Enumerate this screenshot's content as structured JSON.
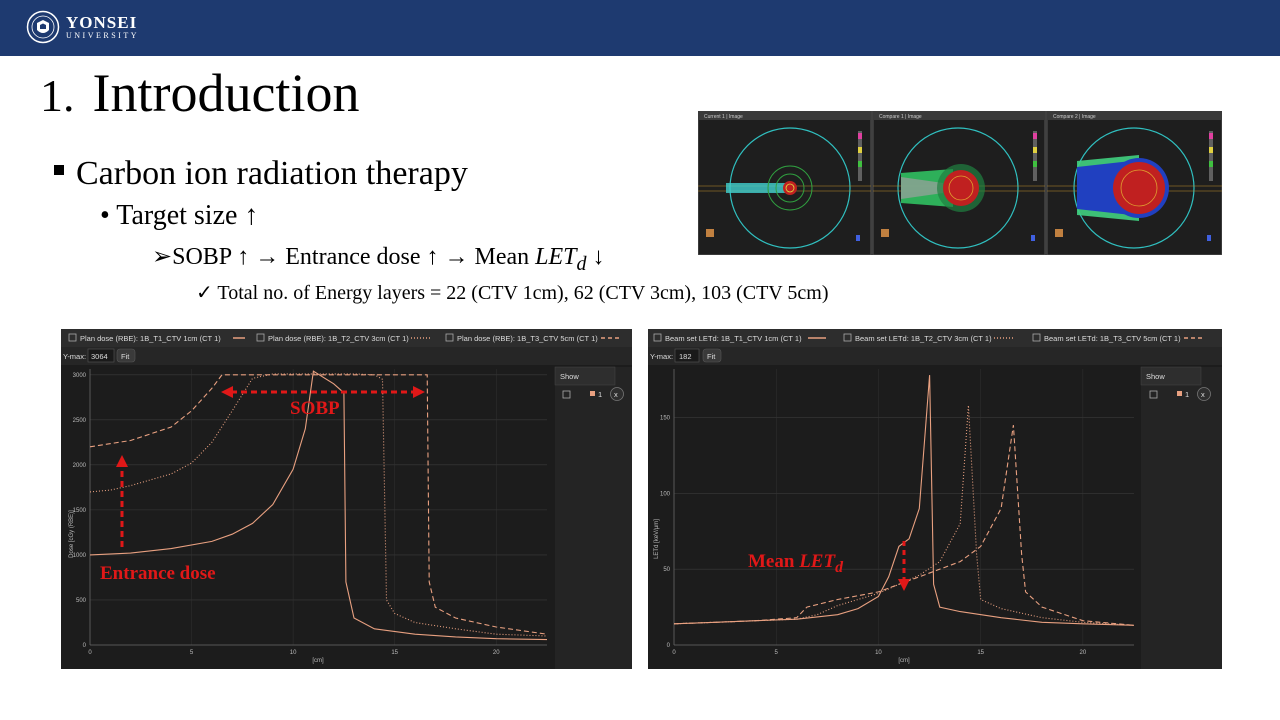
{
  "header": {
    "logo_name": "YONSEI",
    "logo_sub": "UNIVERSITY"
  },
  "slide": {
    "title_num": "1.",
    "title": "Introduction",
    "bullet1": "Carbon ion radiation therapy",
    "bullet2_prefix": "• ",
    "bullet2": "Target size ↑",
    "bullet3_prefix": "➢",
    "bullet3": "SOBP ↑ → Entrance dose ↑ → Mean ",
    "bullet3_var": "LET",
    "bullet3_sub": "d",
    "bullet3_suffix": " ↓",
    "bullet4_prefix": "✓ ",
    "bullet4": "Total no. of Energy layers = 22 (CTV 1cm), 62 (CTV 3cm), 103 (CTV 5cm)"
  },
  "colors": {
    "header_blue": "#1e3a70",
    "curve": "#e8a080",
    "annotation_red": "#e01818",
    "panel_bg": "#1c1c1c"
  },
  "dose_panel": {
    "legend": [
      "Plan dose (RBE): 1B_T1_CTV 1cm (CT 1)",
      "Plan dose (RBE): 1B_T2_CTV 3cm (CT 1)",
      "Plan dose (RBE): 1B_T3_CTV 5cm (CT 1)"
    ],
    "ymax_label": "Y-max:",
    "ymax_value": "3064",
    "fit_label": "Fit",
    "show_label": "Show",
    "show_item": "1",
    "remove_label": "x",
    "ylabel": "Dose [cGy (RBE)]",
    "xlabel": "[cm]",
    "yticks": [
      "3000",
      "2500",
      "2000",
      "1500",
      "1000",
      "500",
      "0"
    ],
    "xticks": [
      "0",
      "5",
      "10",
      "15",
      "20"
    ],
    "annotation_sobp": "SOBP",
    "annotation_entrance": "Entrance dose"
  },
  "let_panel": {
    "legend": [
      "Beam set LETd: 1B_T1_CTV 1cm (CT 1)",
      "Beam set LETd: 1B_T2_CTV 3cm (CT 1)",
      "Beam set LETd: 1B_T3_CTV 5cm (CT 1)"
    ],
    "ymax_label": "Y-max:",
    "ymax_value": "182",
    "fit_label": "Fit",
    "show_label": "Show",
    "show_item": "1",
    "remove_label": "x",
    "ylabel": "LETd [keV/μm]",
    "xlabel": "[cm]",
    "yticks": [
      "150",
      "100",
      "50",
      "0"
    ],
    "xticks": [
      "0",
      "5",
      "10",
      "15",
      "20"
    ],
    "annotation_mean": "Mean ",
    "annotation_var": "LET",
    "annotation_sub": "d"
  },
  "ct_panel": {
    "tabs": [
      "Current 1 | Image",
      "Compare 1 | Image",
      "Compare 2 | Image"
    ]
  },
  "chart_data": [
    {
      "type": "line",
      "xlabel": "[cm]",
      "ylabel": "Dose [cGy (RBE)]",
      "xlim": [
        0,
        22.5
      ],
      "ylim": [
        0,
        3064
      ],
      "grid": true,
      "legend": "top",
      "series": [
        {
          "name": "Plan dose (RBE): 1B_T1_CTV 1cm (CT 1)",
          "style": "solid",
          "x": [
            0,
            2,
            4,
            6,
            7,
            8,
            9,
            10,
            10.6,
            11,
            12,
            12.5,
            12.6,
            13,
            14,
            16,
            18,
            20,
            22.5
          ],
          "y": [
            1000,
            1020,
            1070,
            1150,
            1230,
            1350,
            1560,
            1950,
            2400,
            3040,
            2900,
            2800,
            700,
            300,
            180,
            120,
            90,
            70,
            60
          ]
        },
        {
          "name": "Plan dose (RBE): 1B_T2_CTV 3cm (CT 1)",
          "style": "dotted",
          "x": [
            0,
            1,
            2,
            4,
            5,
            6,
            7,
            8,
            9,
            10,
            11,
            12,
            13,
            14,
            14.4,
            14.6,
            15,
            16,
            18,
            20,
            22.5
          ],
          "y": [
            1700,
            1720,
            1770,
            1900,
            2020,
            2250,
            2600,
            2960,
            3010,
            3010,
            3010,
            3010,
            3010,
            3000,
            2950,
            500,
            350,
            250,
            180,
            120,
            100
          ]
        },
        {
          "name": "Plan dose (RBE): 1B_T3_CTV 5cm (CT 1)",
          "style": "dashed",
          "x": [
            0,
            2,
            4,
            5,
            6,
            6.5,
            7,
            9,
            11,
            13,
            15,
            16.6,
            16.7,
            17,
            18,
            20,
            22.5
          ],
          "y": [
            2200,
            2270,
            2420,
            2600,
            2850,
            3000,
            3000,
            3000,
            3000,
            3000,
            3000,
            3000,
            700,
            420,
            300,
            200,
            120
          ]
        }
      ]
    },
    {
      "type": "line",
      "xlabel": "[cm]",
      "ylabel": "LETd [keV/μm]",
      "xlim": [
        0,
        22.5
      ],
      "ylim": [
        0,
        182
      ],
      "grid": true,
      "legend": "top",
      "series": [
        {
          "name": "Beam set LETd: 1B_T1_CTV 1cm (CT 1)",
          "style": "solid",
          "x": [
            0,
            2,
            4,
            6,
            8,
            9,
            10,
            10.5,
            11,
            11.5,
            12,
            12.5,
            12.7,
            13,
            14,
            16,
            18,
            20,
            22.5
          ],
          "y": [
            14,
            15,
            16,
            17,
            20,
            24,
            32,
            45,
            65,
            70,
            90,
            178,
            40,
            25,
            22,
            18,
            15,
            14,
            13
          ]
        },
        {
          "name": "Beam set LETd: 1B_T2_CTV 3cm (CT 1)",
          "style": "dotted",
          "x": [
            0,
            2,
            4,
            6,
            7,
            8,
            9,
            10,
            11,
            12,
            13,
            14,
            14.4,
            14.8,
            15,
            16,
            18,
            20,
            22.5
          ],
          "y": [
            14,
            15,
            16,
            17,
            20,
            26,
            30,
            34,
            40,
            46,
            55,
            80,
            158,
            60,
            30,
            24,
            18,
            15,
            13
          ]
        },
        {
          "name": "Beam set LETd: 1B_T3_CTV 5cm (CT 1)",
          "style": "dashed",
          "x": [
            0,
            2,
            4,
            6,
            6.5,
            8,
            10,
            12,
            14,
            15,
            16,
            16.6,
            17,
            17.2,
            18,
            20,
            22.5
          ],
          "y": [
            14,
            15,
            16,
            18,
            25,
            30,
            35,
            45,
            55,
            65,
            90,
            145,
            60,
            35,
            25,
            16,
            13
          ]
        }
      ]
    }
  ]
}
